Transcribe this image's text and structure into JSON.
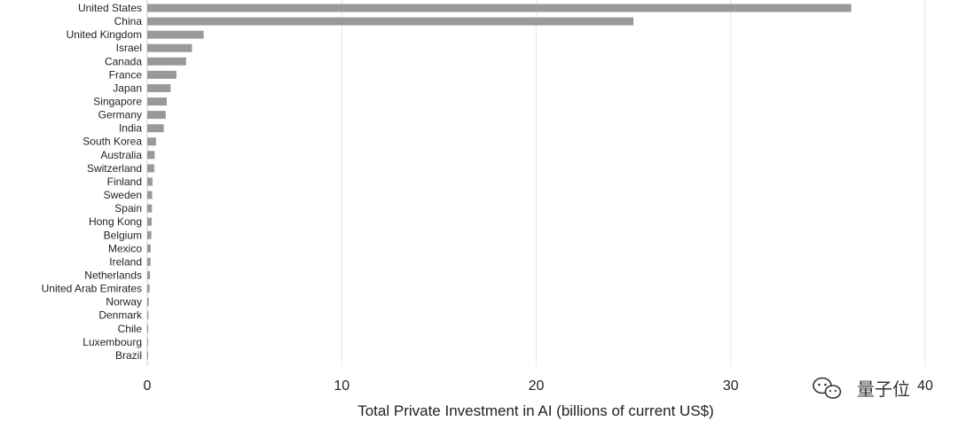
{
  "chart_data": {
    "type": "bar",
    "orientation": "horizontal",
    "categories": [
      "United States",
      "China",
      "United Kingdom",
      "Israel",
      "Canada",
      "France",
      "Japan",
      "Singapore",
      "Germany",
      "India",
      "South Korea",
      "Australia",
      "Switzerland",
      "Finland",
      "Sweden",
      "Spain",
      "Hong Kong",
      "Belgium",
      "Mexico",
      "Ireland",
      "Netherlands",
      "United Arab Emirates",
      "Norway",
      "Denmark",
      "Chile",
      "Luxembourg",
      "Brazil"
    ],
    "values": [
      36.2,
      25.0,
      2.9,
      2.3,
      2.0,
      1.5,
      1.2,
      1.0,
      0.95,
      0.85,
      0.45,
      0.38,
      0.36,
      0.27,
      0.25,
      0.24,
      0.23,
      0.21,
      0.18,
      0.17,
      0.14,
      0.12,
      0.08,
      0.06,
      0.05,
      0.04,
      0.02
    ],
    "xlabel": "Total Private Investment in AI (billions of current US$)",
    "xlim": [
      0,
      40
    ],
    "xticks": [
      "0",
      "10",
      "20",
      "30",
      "40"
    ],
    "grid": true,
    "bar_color": "#999999"
  },
  "watermark": {
    "text": "量子位",
    "icon": "wechat-icon"
  }
}
